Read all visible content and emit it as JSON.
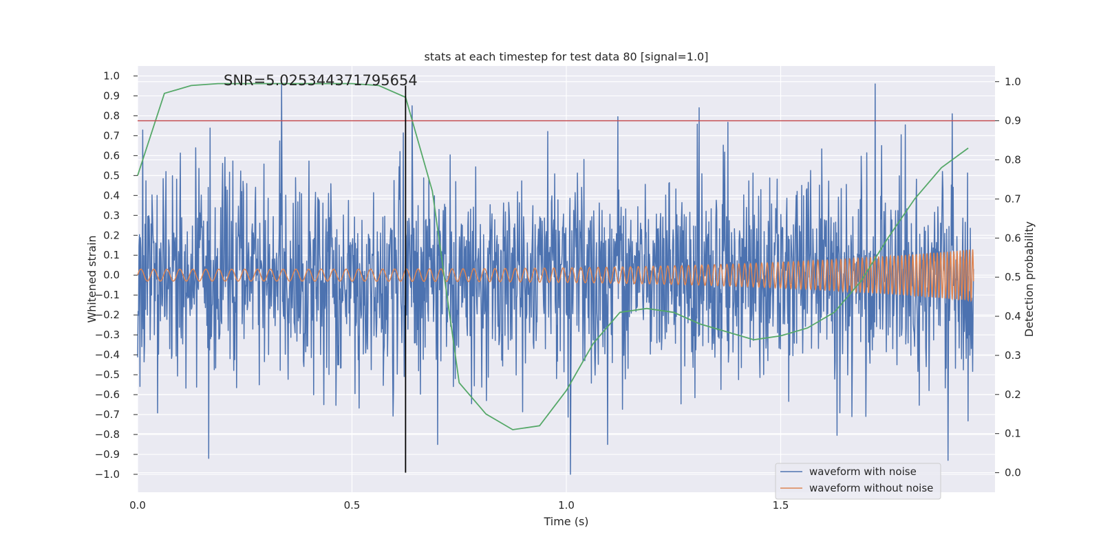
{
  "chart_data": {
    "type": "line",
    "title": "stats at each timestep for test data 80 [signal=1.0]",
    "xlabel": "Time (s)",
    "ylabel_left": "Whitened strain",
    "ylabel_right": "Detection probability",
    "xlim": [
      0.0,
      2.0
    ],
    "ylim_left": [
      -1.09,
      1.05
    ],
    "ylim_right": [
      -0.05,
      1.04
    ],
    "x_ticks": [
      0.0,
      0.5,
      1.0,
      1.5
    ],
    "x_tick_labels": [
      "0.0",
      "0.5",
      "1.0",
      "1.5"
    ],
    "y_left_ticks": [
      -1.0,
      -0.9,
      -0.8,
      -0.7,
      -0.6,
      -0.5,
      -0.4,
      -0.3,
      -0.2,
      -0.1,
      0.0,
      0.1,
      0.2,
      0.3,
      0.4,
      0.5,
      0.6,
      0.7,
      0.8,
      0.9,
      1.0
    ],
    "y_left_tick_labels": [
      "−1.0",
      "−0.9",
      "−0.8",
      "−0.7",
      "−0.6",
      "−0.5",
      "−0.4",
      "−0.3",
      "−0.2",
      "−0.1",
      "0.0",
      "0.1",
      "0.2",
      "0.3",
      "0.4",
      "0.5",
      "0.6",
      "0.7",
      "0.8",
      "0.9",
      "1.0"
    ],
    "y_right_ticks": [
      0.0,
      0.1,
      0.2,
      0.3,
      0.4,
      0.5,
      0.6,
      0.7,
      0.8,
      0.9,
      1.0
    ],
    "y_right_tick_labels": [
      "0.0",
      "0.1",
      "0.2",
      "0.3",
      "0.4",
      "0.5",
      "0.6",
      "0.7",
      "0.8",
      "0.9",
      "1.0"
    ],
    "grid": true,
    "legend_placement": "lower-right",
    "annotation": "SNR=5.025344371795654",
    "series": [
      {
        "name": "waveform with noise",
        "color": "#4c72b0",
        "axis": "left",
        "kind": "noise",
        "duration": 1.95,
        "approx_std": 0.26,
        "range": [
          -1.0,
          0.97
        ],
        "notable_peaks": [
          [
            0.166,
            -0.92
          ],
          [
            0.336,
            0.97
          ],
          [
            0.64,
            0.85
          ],
          [
            1.01,
            -1.0
          ],
          [
            1.31,
            0.84
          ],
          [
            1.72,
            0.96
          ],
          [
            1.9,
            0.81
          ],
          [
            1.89,
            -0.93
          ]
        ]
      },
      {
        "name": "waveform without noise",
        "color": "#dd8452",
        "axis": "left",
        "kind": "chirp",
        "duration": 1.95,
        "amplitude_start": 0.03,
        "amplitude_end": 0.13
      },
      {
        "color": "#55a868",
        "axis": "right",
        "kind": "line",
        "x": [
          0.0,
          0.0625,
          0.125,
          0.1875,
          0.25,
          0.3125,
          0.375,
          0.4375,
          0.5,
          0.5625,
          0.625,
          0.6875,
          0.75,
          0.8125,
          0.875,
          0.9375,
          1.0,
          1.0625,
          1.125,
          1.1875,
          1.25,
          1.3125,
          1.375,
          1.4375,
          1.5,
          1.5625,
          1.625,
          1.6875,
          1.75,
          1.8125,
          1.875,
          1.9375
        ],
        "y": [
          0.76,
          0.97,
          0.99,
          0.995,
          0.995,
          0.995,
          0.995,
          0.995,
          0.995,
          0.99,
          0.96,
          0.72,
          0.23,
          0.15,
          0.11,
          0.12,
          0.21,
          0.33,
          0.41,
          0.42,
          0.41,
          0.38,
          0.36,
          0.34,
          0.35,
          0.37,
          0.41,
          0.49,
          0.6,
          0.7,
          0.78,
          0.83
        ]
      }
    ],
    "threshold_line": {
      "axis": "right",
      "y": 0.9,
      "color": "#c44e52"
    },
    "vertical_marker": {
      "x": 0.625,
      "color": "#000000"
    }
  }
}
